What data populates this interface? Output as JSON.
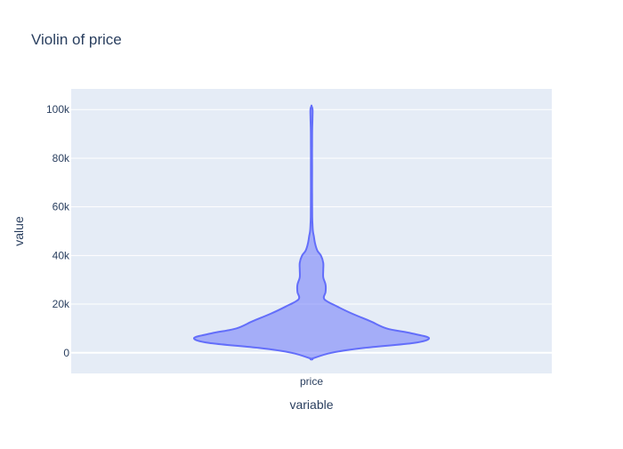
{
  "chart_data": {
    "type": "violin",
    "title": "Violin of price",
    "xlabel": "variable",
    "ylabel": "value",
    "categories": [
      "price"
    ],
    "ylim": [
      -8500,
      108500
    ],
    "y_ticks": [
      0,
      20000,
      40000,
      60000,
      80000,
      100000
    ],
    "y_tick_labels": [
      "0",
      "20k",
      "40k",
      "60k",
      "80k",
      "100k"
    ],
    "grid": true,
    "legend": "none",
    "colors": {
      "fill": "#636efa",
      "plot_bg": "#e5ecf6",
      "grid": "#ffffff",
      "text": "#2a3f5f"
    },
    "series": [
      {
        "category": "price",
        "density_profile": [
          {
            "y": -2500,
            "w": 0.0
          },
          {
            "y": 0,
            "w": 0.17
          },
          {
            "y": 2000,
            "w": 0.45
          },
          {
            "y": 4000,
            "w": 0.87
          },
          {
            "y": 6000,
            "w": 1.0
          },
          {
            "y": 8000,
            "w": 0.85
          },
          {
            "y": 10000,
            "w": 0.64
          },
          {
            "y": 13000,
            "w": 0.5
          },
          {
            "y": 16000,
            "w": 0.35
          },
          {
            "y": 19000,
            "w": 0.22
          },
          {
            "y": 22000,
            "w": 0.11
          },
          {
            "y": 25000,
            "w": 0.12
          },
          {
            "y": 28000,
            "w": 0.12
          },
          {
            "y": 31000,
            "w": 0.1
          },
          {
            "y": 34000,
            "w": 0.1
          },
          {
            "y": 37000,
            "w": 0.1
          },
          {
            "y": 40000,
            "w": 0.08
          },
          {
            "y": 42000,
            "w": 0.05
          },
          {
            "y": 45000,
            "w": 0.03
          },
          {
            "y": 48000,
            "w": 0.02
          },
          {
            "y": 50000,
            "w": 0.012
          },
          {
            "y": 53000,
            "w": 0.008
          },
          {
            "y": 56000,
            "w": 0.006
          },
          {
            "y": 65000,
            "w": 0.005
          },
          {
            "y": 75000,
            "w": 0.005
          },
          {
            "y": 85000,
            "w": 0.005
          },
          {
            "y": 92000,
            "w": 0.006
          },
          {
            "y": 96000,
            "w": 0.008
          },
          {
            "y": 100000,
            "w": 0.009
          },
          {
            "y": 101500,
            "w": 0.0
          }
        ]
      }
    ]
  }
}
